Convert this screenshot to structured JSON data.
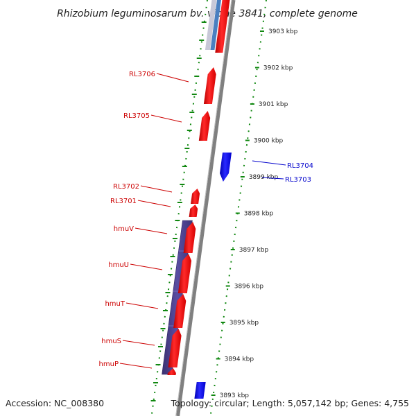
{
  "title": "Rhizobium leguminosarum bv. viciae 3841, complete genome",
  "accession": "Accession: NC_008380",
  "summary": "Topology: circular; Length: 5,057,142 bp; Genes: 4,755",
  "colors": {
    "forward_gene": "#ff0000",
    "reverse_gene": "#0000ff",
    "operon": "#4b3f8f",
    "forward_label": "#cc0000",
    "reverse_label": "#0000cc",
    "backbone": "#808080",
    "tick": "#118811"
  },
  "ruler": [
    {
      "label": "3903 kbp"
    },
    {
      "label": "3902 kbp"
    },
    {
      "label": "3901 kbp"
    },
    {
      "label": "3900 kbp"
    },
    {
      "label": "3899 kbp"
    },
    {
      "label": "3898 kbp"
    },
    {
      "label": "3897 kbp"
    },
    {
      "label": "3896 kbp"
    },
    {
      "label": "3895 kbp"
    },
    {
      "label": "3894 kbp"
    },
    {
      "label": "3893 kbp"
    }
  ],
  "genes": [
    {
      "label": "RL3706",
      "strand": "forward"
    },
    {
      "label": "RL3705",
      "strand": "forward"
    },
    {
      "label": "RL3704",
      "strand": "reverse"
    },
    {
      "label": "RL3703",
      "strand": "reverse"
    },
    {
      "label": "RL3702",
      "strand": "forward"
    },
    {
      "label": "RL3701",
      "strand": "forward"
    },
    {
      "label": "hmuV",
      "strand": "forward"
    },
    {
      "label": "hmuU",
      "strand": "forward"
    },
    {
      "label": "hmuT",
      "strand": "forward"
    },
    {
      "label": "hmuS",
      "strand": "forward"
    },
    {
      "label": "hmuP",
      "strand": "forward"
    }
  ]
}
